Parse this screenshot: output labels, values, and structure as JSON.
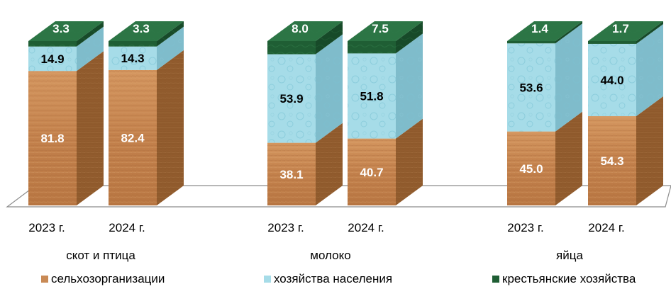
{
  "chart_data": {
    "type": "bar",
    "stacked": true,
    "percent": true,
    "groups": [
      {
        "label": "скот и птица",
        "categories": [
          "2023 г.",
          "2024 г."
        ]
      },
      {
        "label": "молоко",
        "categories": [
          "2023 г.",
          "2024 г."
        ]
      },
      {
        "label": "яйца",
        "categories": [
          "2023 г.",
          "2024 г."
        ]
      }
    ],
    "series": [
      {
        "name": "сельхозорганизации",
        "color": "#c98a55",
        "values": [
          81.8,
          82.4,
          38.1,
          40.7,
          45.0,
          54.3
        ]
      },
      {
        "name": "хозяйства населения",
        "color": "#a6dce8",
        "values": [
          14.9,
          14.3,
          53.9,
          51.8,
          53.6,
          44.0
        ]
      },
      {
        "name": "крестьянские хозяйства",
        "color": "#1f5e34",
        "values": [
          3.3,
          3.3,
          8.0,
          7.5,
          1.4,
          1.7
        ]
      }
    ],
    "data_labels": [
      [
        "81.8",
        "82.4",
        "38.1",
        "40.7",
        "45.0",
        "54.3"
      ],
      [
        "14.9",
        "14.3",
        "53.9",
        "51.8",
        "53.6",
        "44.0"
      ],
      [
        "3.3",
        "3.3",
        "8.0",
        "7.5",
        "1.4",
        "1.7"
      ]
    ],
    "ylim": [
      0,
      100
    ],
    "legend": "bottom",
    "grid": false
  }
}
